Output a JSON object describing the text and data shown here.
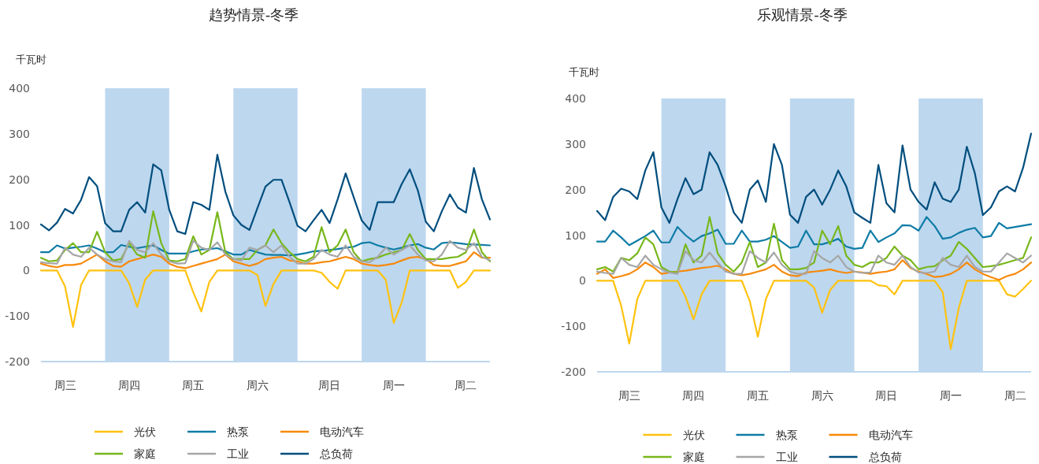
{
  "chart_data": [
    {
      "type": "line",
      "title": "趋势情景-冬季",
      "ylabel": "千瓦时",
      "ylim": [
        -200,
        400
      ],
      "yticks": [
        -200,
        -100,
        0,
        100,
        200,
        300,
        400
      ],
      "categories": [
        null,
        null,
        null,
        "周三",
        null,
        null,
        null,
        null,
        null,
        null,
        null,
        "周四",
        null,
        null,
        null,
        null,
        null,
        null,
        null,
        "周五",
        null,
        null,
        null,
        null,
        null,
        null,
        null,
        "周六",
        null,
        null,
        null,
        null,
        null,
        null,
        null,
        null,
        "周日",
        null,
        null,
        null,
        null,
        null,
        null,
        null,
        "周一",
        null,
        null,
        null,
        null,
        null,
        null,
        null,
        null,
        "周二",
        null,
        null,
        null
      ],
      "grid": false,
      "legend": "bottom",
      "line_style": "solid",
      "marker": "none",
      "series": [
        {
          "name": "光伏",
          "color": "#ffc20e",
          "values": [
            0,
            0,
            0,
            -35,
            -124,
            -32,
            0,
            0,
            0,
            0,
            0,
            -28,
            -80,
            -20,
            0,
            0,
            0,
            0,
            0,
            -48,
            -90,
            -25,
            0,
            0,
            0,
            0,
            0,
            -10,
            -78,
            -30,
            0,
            0,
            0,
            0,
            0,
            -5,
            -25,
            -40,
            0,
            0,
            0,
            0,
            0,
            -20,
            -115,
            -70,
            0,
            0,
            0,
            0,
            0,
            0,
            -38,
            -25,
            0,
            0,
            0
          ]
        },
        {
          "name": "热泵",
          "color": "#0f7ca6",
          "values": [
            40,
            40,
            55,
            48,
            50,
            52,
            55,
            48,
            40,
            40,
            56,
            52,
            49,
            52,
            55,
            45,
            37,
            37,
            37,
            42,
            46,
            47,
            49,
            42,
            35,
            35,
            45,
            40,
            35,
            34,
            34,
            33,
            35,
            38,
            42,
            43,
            45,
            47,
            50,
            52,
            60,
            62,
            55,
            50,
            46,
            50,
            55,
            58,
            50,
            46,
            60,
            62,
            60,
            58,
            57,
            56,
            55
          ]
        },
        {
          "name": "电动汽车",
          "color": "#f7890a",
          "values": [
            15,
            10,
            7,
            12,
            12,
            15,
            25,
            35,
            20,
            10,
            8,
            20,
            25,
            30,
            35,
            30,
            15,
            8,
            5,
            10,
            15,
            20,
            25,
            35,
            20,
            15,
            10,
            15,
            25,
            28,
            30,
            22,
            20,
            15,
            15,
            18,
            20,
            25,
            30,
            25,
            15,
            12,
            10,
            12,
            15,
            22,
            28,
            30,
            25,
            12,
            10,
            10,
            15,
            20,
            40,
            28,
            28
          ]
        },
        {
          "name": "家庭",
          "color": "#78b71b",
          "values": [
            28,
            20,
            22,
            45,
            60,
            40,
            40,
            85,
            40,
            22,
            25,
            60,
            35,
            28,
            130,
            60,
            22,
            20,
            25,
            75,
            35,
            45,
            128,
            40,
            25,
            25,
            25,
            45,
            55,
            90,
            60,
            40,
            25,
            20,
            30,
            95,
            40,
            55,
            90,
            40,
            20,
            25,
            28,
            35,
            40,
            45,
            80,
            45,
            25,
            25,
            25,
            28,
            30,
            40,
            90,
            40,
            20
          ]
        },
        {
          "name": "工业",
          "color": "#a6a6a6",
          "values": [
            18,
            16,
            15,
            50,
            35,
            30,
            50,
            35,
            25,
            20,
            18,
            65,
            45,
            40,
            60,
            35,
            20,
            15,
            16,
            65,
            50,
            45,
            62,
            35,
            25,
            22,
            50,
            45,
            55,
            40,
            55,
            30,
            15,
            15,
            25,
            45,
            35,
            30,
            55,
            30,
            20,
            18,
            30,
            50,
            35,
            45,
            55,
            35,
            22,
            20,
            35,
            65,
            50,
            45,
            60,
            30,
            22
          ]
        },
        {
          "name": "总负荷",
          "color": "#004e7e",
          "values": [
            101,
            88,
            105,
            135,
            125,
            155,
            205,
            185,
            104,
            86,
            86,
            133,
            150,
            127,
            233,
            220,
            133,
            86,
            80,
            150,
            144,
            133,
            254,
            173,
            121,
            100,
            89,
            137,
            184,
            199,
            199,
            150,
            98,
            86,
            110,
            133,
            104,
            156,
            213,
            161,
            110,
            89,
            150,
            150,
            150,
            190,
            222,
            176,
            107,
            86,
            130,
            167,
            138,
            127,
            225,
            156,
            112
          ]
        }
      ]
    },
    {
      "type": "line",
      "title": "乐观情景-冬季",
      "ylabel": "千瓦时",
      "ylim": [
        -200,
        400
      ],
      "yticks": [
        -200,
        -100,
        0,
        100,
        200,
        300,
        400
      ],
      "categories": [
        null,
        null,
        null,
        null,
        "周三",
        null,
        null,
        null,
        null,
        null,
        null,
        null,
        "周四",
        null,
        null,
        null,
        null,
        null,
        null,
        null,
        "周五",
        null,
        null,
        null,
        null,
        null,
        null,
        null,
        "周六",
        null,
        null,
        null,
        null,
        null,
        null,
        null,
        "周日",
        null,
        null,
        null,
        null,
        null,
        null,
        null,
        "周一",
        null,
        null,
        null,
        null,
        null,
        null,
        null,
        "周二",
        null,
        null
      ],
      "grid": false,
      "legend": "bottom",
      "line_style": "solid",
      "marker": "none",
      "series": [
        {
          "name": "光伏",
          "color": "#ffc20e",
          "values": [
            0,
            0,
            0,
            -55,
            -138,
            -40,
            0,
            0,
            0,
            0,
            0,
            -35,
            -85,
            -30,
            0,
            0,
            0,
            0,
            0,
            -45,
            -123,
            -40,
            0,
            0,
            0,
            0,
            0,
            -15,
            -70,
            -20,
            0,
            0,
            0,
            0,
            0,
            -10,
            -12,
            -30,
            0,
            0,
            0,
            0,
            0,
            -25,
            -150,
            -60,
            0,
            0,
            0,
            0,
            0,
            -30,
            -35,
            -18,
            0
          ]
        },
        {
          "name": "热泵",
          "color": "#0f7ca6",
          "values": [
            86,
            86,
            110,
            95,
            78,
            88,
            98,
            110,
            84,
            84,
            118,
            100,
            86,
            98,
            104,
            112,
            81,
            81,
            110,
            86,
            86,
            90,
            98,
            85,
            72,
            75,
            110,
            80,
            80,
            85,
            92,
            75,
            70,
            72,
            110,
            85,
            95,
            104,
            122,
            121,
            110,
            140,
            120,
            92,
            95,
            105,
            112,
            116,
            95,
            98,
            127,
            115,
            118,
            121,
            124
          ]
        },
        {
          "name": "电动汽车",
          "color": "#f7890a",
          "values": [
            15,
            25,
            6,
            10,
            15,
            25,
            40,
            30,
            15,
            18,
            20,
            22,
            25,
            28,
            30,
            33,
            25,
            15,
            12,
            15,
            20,
            25,
            35,
            20,
            12,
            10,
            18,
            20,
            22,
            25,
            20,
            17,
            20,
            18,
            15,
            18,
            20,
            25,
            45,
            28,
            20,
            15,
            8,
            10,
            15,
            25,
            40,
            25,
            15,
            8,
            2,
            10,
            15,
            25,
            40
          ]
        },
        {
          "name": "家庭",
          "color": "#78b71b",
          "values": [
            25,
            30,
            20,
            50,
            45,
            60,
            95,
            80,
            30,
            20,
            18,
            80,
            40,
            55,
            140,
            60,
            35,
            20,
            40,
            85,
            30,
            40,
            125,
            45,
            25,
            25,
            28,
            40,
            110,
            80,
            120,
            55,
            35,
            30,
            40,
            40,
            50,
            75,
            55,
            45,
            25,
            30,
            32,
            45,
            55,
            85,
            70,
            50,
            30,
            32,
            35,
            40,
            45,
            50,
            95
          ]
        },
        {
          "name": "工业",
          "color": "#a6a6a6",
          "values": [
            20,
            17,
            15,
            50,
            35,
            30,
            55,
            35,
            25,
            18,
            15,
            65,
            45,
            40,
            62,
            40,
            20,
            15,
            15,
            65,
            50,
            40,
            62,
            35,
            20,
            15,
            15,
            65,
            50,
            40,
            55,
            30,
            20,
            17,
            18,
            55,
            40,
            35,
            55,
            30,
            18,
            17,
            20,
            50,
            35,
            30,
            55,
            30,
            20,
            20,
            40,
            60,
            50,
            40,
            55
          ]
        },
        {
          "name": "总负荷",
          "color": "#004e7e",
          "values": [
            153,
            133,
            184,
            202,
            196,
            179,
            242,
            282,
            161,
            127,
            179,
            225,
            190,
            200,
            282,
            254,
            207,
            150,
            127,
            200,
            220,
            173,
            300,
            254,
            145,
            127,
            184,
            200,
            167,
            200,
            242,
            207,
            150,
            138,
            127,
            254,
            170,
            150,
            297,
            200,
            173,
            156,
            216,
            180,
            173,
            200,
            294,
            236,
            144,
            161,
            196,
            207,
            196,
            248,
            323
          ]
        }
      ]
    }
  ]
}
